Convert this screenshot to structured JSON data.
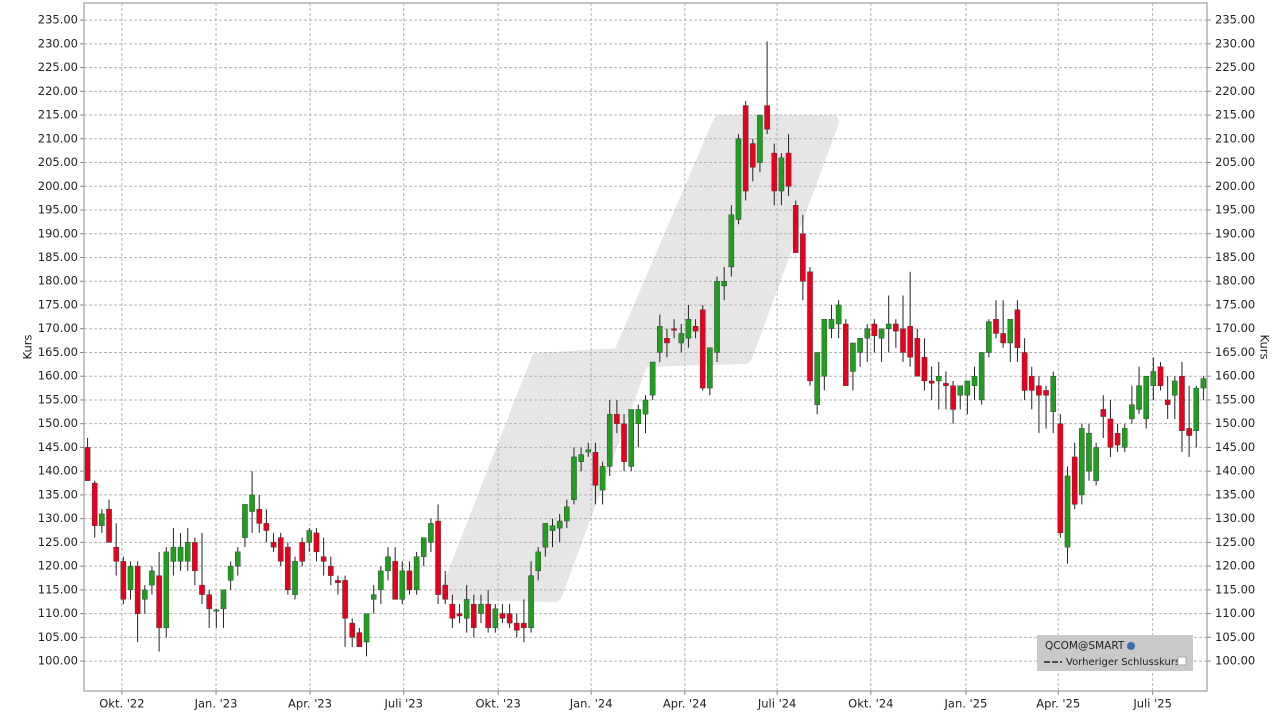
{
  "chart_data": {
    "type": "candlestick",
    "y_axis_label": "Kurs",
    "series_name": "QCOM@SMART",
    "reference_line_name": "Vorheriger Schlusskurs",
    "up_color": "#1f9e1f",
    "down_color": "#e8001c",
    "grid": true,
    "ylim": [
      93.7,
      238.6
    ],
    "yticks": [
      {
        "value": 100,
        "label": "100.00"
      },
      {
        "value": 105,
        "label": "105.00"
      },
      {
        "value": 110,
        "label": "110.00"
      },
      {
        "value": 115,
        "label": "115.00"
      },
      {
        "value": 120,
        "label": "120.00"
      },
      {
        "value": 125,
        "label": "125.00"
      },
      {
        "value": 130,
        "label": "130.00"
      },
      {
        "value": 135,
        "label": "135.00"
      },
      {
        "value": 140,
        "label": "140.00"
      },
      {
        "value": 145,
        "label": "145.00"
      },
      {
        "value": 150,
        "label": "150.00"
      },
      {
        "value": 155,
        "label": "155.00"
      },
      {
        "value": 160,
        "label": "160.00"
      },
      {
        "value": 165,
        "label": "165.00"
      },
      {
        "value": 170,
        "label": "170.00"
      },
      {
        "value": 175,
        "label": "175.00"
      },
      {
        "value": 180,
        "label": "180.00"
      },
      {
        "value": 185,
        "label": "185.00"
      },
      {
        "value": 190,
        "label": "190.00"
      },
      {
        "value": 195,
        "label": "195.00"
      },
      {
        "value": 200,
        "label": "200.00"
      },
      {
        "value": 205,
        "label": "205.00"
      },
      {
        "value": 210,
        "label": "210.00"
      },
      {
        "value": 215,
        "label": "215.00"
      },
      {
        "value": 220,
        "label": "220.00"
      },
      {
        "value": 225,
        "label": "225.00"
      },
      {
        "value": 230,
        "label": "230.00"
      },
      {
        "value": 235,
        "label": "235.00"
      }
    ],
    "xticks": [
      {
        "value": 4.8,
        "label": "Okt. '22"
      },
      {
        "value": 17.96,
        "label": "Jan. '23"
      },
      {
        "value": 31.1,
        "label": "Apr. '23"
      },
      {
        "value": 44.2,
        "label": "Juli '23"
      },
      {
        "value": 57.4,
        "label": "Okt. '23"
      },
      {
        "value": 70.4,
        "label": "Jan. '24"
      },
      {
        "value": 83.5,
        "label": "Apr. '24"
      },
      {
        "value": 96.4,
        "label": "Juli '24"
      },
      {
        "value": 109.5,
        "label": "Okt. '24"
      },
      {
        "value": 122.8,
        "label": "Jan. '25"
      },
      {
        "value": 135.7,
        "label": "Apr. '25"
      },
      {
        "value": 148.9,
        "label": "Juli '25"
      }
    ],
    "categories": [
      null,
      null,
      null,
      null,
      null,
      null,
      null,
      null,
      null,
      null,
      null,
      null,
      null,
      null,
      null,
      null,
      null,
      null,
      null,
      null,
      null,
      null,
      null,
      null,
      null,
      null,
      null,
      null,
      null,
      null,
      null,
      null,
      null,
      null,
      null,
      null,
      null,
      null,
      null,
      null,
      null,
      null,
      null,
      null,
      null,
      null,
      null,
      null,
      null,
      null,
      null,
      null,
      null,
      null,
      null,
      null,
      null,
      null,
      null,
      null,
      null,
      null,
      null,
      null,
      null,
      null,
      null,
      null,
      null,
      null,
      null,
      null,
      null,
      null,
      null,
      null,
      null,
      null,
      null,
      null,
      null,
      null,
      null,
      null,
      null,
      null,
      null,
      null,
      null,
      null,
      null,
      null,
      null,
      null,
      null,
      null,
      null,
      null,
      null,
      null,
      null,
      null,
      null,
      null,
      null,
      null,
      null,
      null,
      null,
      null,
      null,
      null,
      null,
      null,
      null,
      null,
      null,
      null,
      null,
      null,
      null,
      null,
      null,
      null,
      null,
      null,
      null,
      null,
      null,
      null,
      null,
      null,
      null,
      null,
      null,
      null,
      null,
      null,
      null,
      null,
      null,
      null,
      null,
      null,
      null,
      null,
      null,
      null,
      null,
      null,
      null,
      null,
      null,
      null,
      null,
      null,
      null
    ],
    "open": [
      145,
      137.5,
      128.5,
      132,
      124,
      121,
      115,
      120,
      113,
      116,
      118,
      107,
      121,
      121,
      121,
      125,
      116,
      114,
      110.5,
      111,
      117,
      120,
      126,
      131.5,
      132,
      129,
      125,
      126,
      124,
      114,
      125,
      125,
      127,
      122,
      120,
      117,
      117,
      108,
      106,
      104,
      113,
      115,
      119,
      121,
      113,
      119,
      115,
      122,
      125,
      129.5,
      116,
      112,
      110,
      109,
      112,
      110,
      112,
      107,
      110,
      110,
      108,
      108,
      107,
      119,
      124,
      127.5,
      128,
      129.5,
      134,
      142,
      144,
      144,
      136,
      141,
      152,
      150,
      141,
      150,
      152,
      156,
      165,
      168,
      170,
      167,
      168,
      170.5,
      174,
      157.5,
      165,
      179,
      183,
      193,
      217,
      209,
      205,
      217,
      207,
      199,
      207,
      196,
      190,
      182,
      154,
      160,
      170,
      171,
      171,
      161,
      165,
      168,
      171,
      168,
      170,
      171,
      170,
      170.5,
      168,
      164,
      159,
      159,
      158.5,
      158,
      156,
      156,
      158,
      155,
      165,
      172,
      169,
      167,
      174,
      165,
      160,
      158,
      157,
      152.5,
      150,
      124,
      143,
      135,
      140,
      138,
      153,
      151,
      148,
      145,
      151,
      153,
      151,
      158,
      162,
      155,
      156,
      160,
      149,
      148.5,
      157.5
    ],
    "high": [
      147,
      138,
      132,
      134,
      129,
      122,
      121,
      121,
      116,
      120,
      123,
      124,
      128,
      127,
      128,
      126,
      127,
      115,
      111,
      115,
      121,
      124,
      133,
      140,
      135,
      132,
      127,
      127,
      125,
      122,
      126,
      128,
      128,
      126,
      122,
      118,
      118,
      109,
      107,
      110,
      116,
      120,
      124,
      124,
      121,
      121,
      123,
      126,
      130,
      133,
      119,
      114,
      112,
      116,
      114,
      114,
      115,
      112,
      112,
      112,
      110,
      113,
      121,
      124,
      129,
      130,
      131,
      134,
      145,
      145,
      146,
      146,
      142,
      155,
      155,
      152,
      153,
      154,
      156,
      163,
      173,
      170,
      172,
      171,
      175,
      172,
      175,
      166,
      181,
      183,
      196,
      211,
      218,
      210,
      215,
      230.5,
      209,
      207,
      211,
      197,
      194,
      183,
      165,
      172,
      175,
      176,
      172,
      167,
      168,
      171,
      172,
      170,
      177,
      172,
      177,
      182,
      170,
      168,
      162,
      163,
      161,
      159,
      158,
      159,
      162,
      165,
      172,
      176,
      176,
      172,
      176,
      168,
      162,
      160,
      158,
      161,
      152,
      141,
      146,
      150,
      150,
      146,
      156,
      155,
      150,
      150,
      158,
      162,
      160,
      164,
      163,
      160,
      160,
      163,
      158,
      158,
      160
    ],
    "low": [
      138,
      126,
      127,
      125,
      118,
      112,
      113,
      104,
      110,
      114,
      102,
      105,
      118,
      119,
      119,
      116,
      112,
      107,
      107,
      107,
      115,
      118,
      124,
      127,
      127,
      125,
      123,
      120,
      114,
      113,
      120,
      123,
      121,
      118,
      116,
      114,
      103,
      103,
      103,
      101,
      110,
      112,
      117,
      113,
      112,
      114,
      114,
      120,
      123,
      112,
      112,
      107,
      108,
      106,
      105,
      108,
      106,
      106,
      108,
      107,
      105,
      104,
      106,
      117,
      122,
      124,
      125,
      128,
      133,
      140,
      143,
      133,
      133,
      139,
      148,
      140,
      140,
      145,
      148,
      155,
      163,
      164,
      168,
      165,
      166,
      168,
      157,
      156,
      163,
      176,
      181,
      192,
      197,
      201,
      203,
      211,
      196,
      196,
      198,
      186,
      176,
      158,
      152,
      157,
      168,
      168,
      158,
      157,
      162,
      163,
      165,
      163,
      165,
      166,
      163,
      162,
      160,
      157,
      155,
      153,
      153,
      150,
      153,
      152,
      155,
      154,
      164,
      168,
      166,
      163,
      163,
      155,
      153,
      148,
      149,
      148,
      126,
      120.5,
      132,
      133,
      138,
      137,
      147,
      143,
      144,
      144,
      150,
      152,
      149,
      155,
      157,
      151,
      151,
      144,
      143,
      145,
      155
    ],
    "close": [
      138,
      128.5,
      131,
      125,
      121,
      113,
      120,
      110,
      115,
      119,
      107,
      123,
      124,
      124,
      125,
      119,
      114,
      111,
      110.8,
      115,
      120,
      123,
      133,
      135,
      129,
      127.5,
      124,
      121,
      115,
      121,
      121,
      127.5,
      123,
      121,
      118,
      116.5,
      109,
      105,
      103,
      110,
      114,
      119,
      122,
      113,
      119,
      115,
      122,
      126,
      129,
      114,
      113,
      109,
      109.5,
      113,
      107,
      112,
      107,
      111,
      109,
      108,
      106.5,
      107,
      118,
      123,
      129,
      128.5,
      129.5,
      132.5,
      143,
      143.5,
      144.5,
      137,
      141,
      152,
      150,
      142,
      153,
      153,
      155,
      163,
      170.5,
      167,
      169.8,
      169,
      172,
      169.5,
      157.5,
      166,
      180,
      180,
      194,
      210,
      199,
      204,
      215,
      212,
      199,
      206,
      200,
      186,
      180,
      159,
      165,
      172,
      172,
      175,
      158,
      167,
      168,
      170,
      168.5,
      170,
      171,
      169.5,
      165,
      164,
      160,
      159,
      158.5,
      160,
      158,
      153,
      158,
      159,
      160,
      165,
      171.5,
      169,
      167,
      172,
      166,
      157,
      157,
      156,
      156,
      160,
      127,
      139,
      133,
      149,
      148,
      145,
      151.5,
      145,
      145.5,
      149,
      154,
      158,
      160,
      161,
      158,
      154,
      159,
      148.5,
      147.5,
      157.5,
      159.5
    ]
  }
}
